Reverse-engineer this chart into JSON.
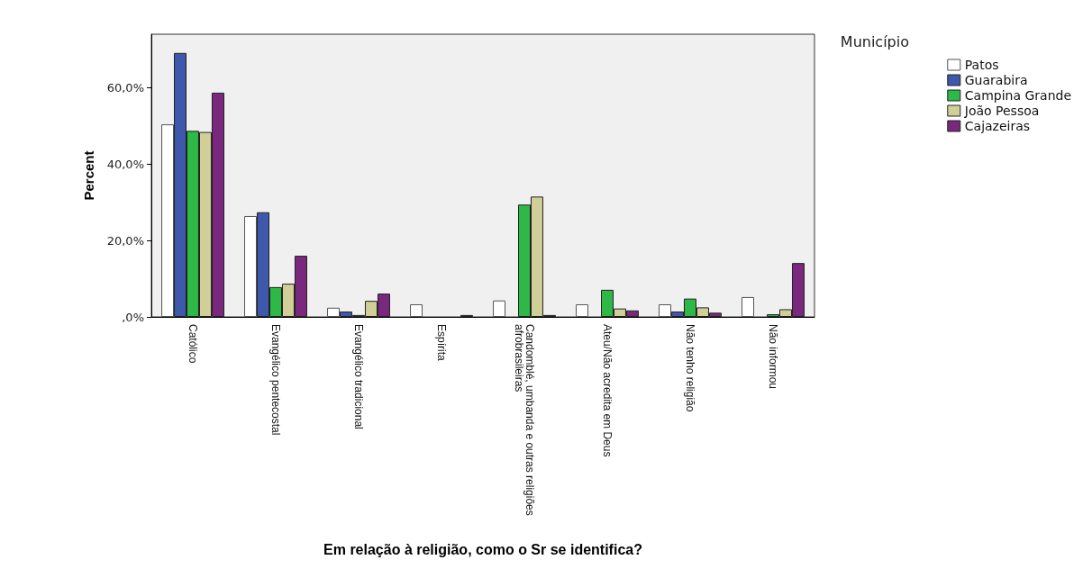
{
  "chart_data": {
    "type": "bar",
    "xlabel": "Em relação à religião, como o Sr se identifica?",
    "ylabel": "Percent",
    "legend_title": "Município",
    "categories": [
      "Católico",
      "Evangélico pentecostal",
      "Evangélico tradicional",
      "Espírita",
      "Candomblé, umbanda e outras religiões afrobrasileiras",
      "Ateu/Não acredita em Deus",
      "Não tenho religião",
      "Não informou"
    ],
    "series": [
      {
        "name": "Patos",
        "color": "#ffffff",
        "values": [
          50.4,
          26.4,
          2.4,
          3.3,
          4.3,
          3.3,
          3.3,
          5.2
        ]
      },
      {
        "name": "Guarabira",
        "color": "#3e58ac",
        "values": [
          69.1,
          27.4,
          1.4,
          null,
          null,
          null,
          1.4,
          null
        ]
      },
      {
        "name": "Campina Grande",
        "color": "#2eb848",
        "values": [
          48.7,
          7.8,
          0.5,
          null,
          29.4,
          7.1,
          4.8,
          0.7
        ]
      },
      {
        "name": "João Pessoa",
        "color": "#d2ce98",
        "values": [
          48.4,
          8.7,
          4.2,
          null,
          31.5,
          2.2,
          2.5,
          2.0
        ]
      },
      {
        "name": "Cajazeiras",
        "color": "#79287d",
        "values": [
          58.7,
          16.0,
          6.1,
          0.5,
          0.5,
          1.7,
          1.1,
          14.1
        ]
      }
    ],
    "ylim": [
      0,
      74
    ],
    "yticks": [
      {
        "value": 0,
        "label": ",0%"
      },
      {
        "value": 20,
        "label": "20,0%"
      },
      {
        "value": 40,
        "label": "40,0%"
      },
      {
        "value": 60,
        "label": "60,0%"
      }
    ],
    "grid": false,
    "legend": "top right"
  }
}
